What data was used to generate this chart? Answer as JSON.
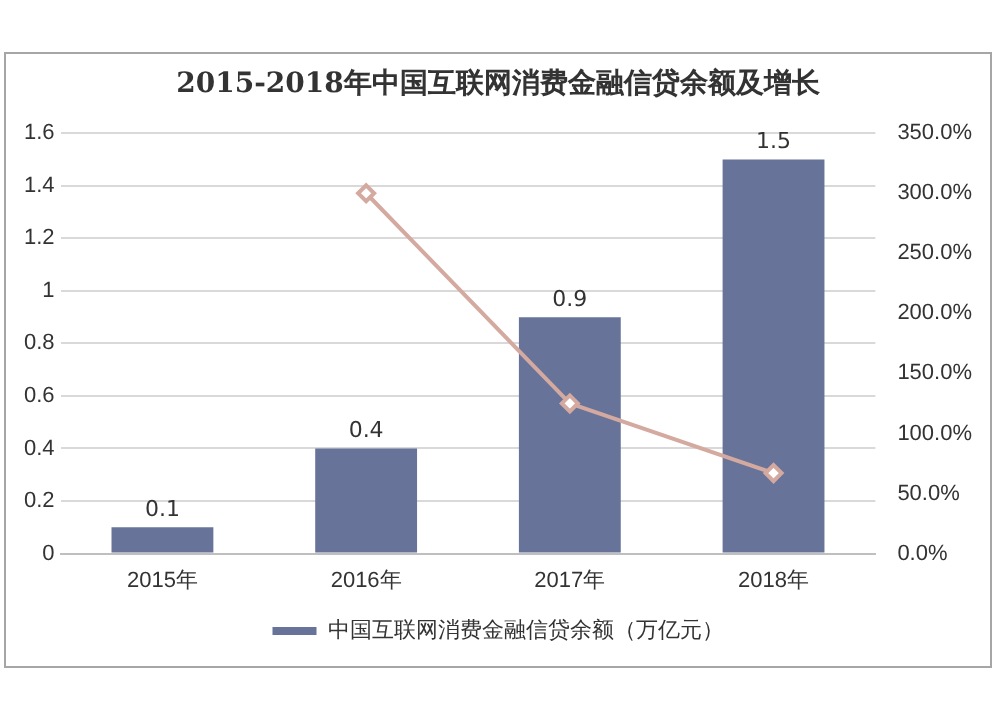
{
  "chart_data": {
    "type": "bar",
    "title": "2015-2018年中国互联网消费金融信贷余额及增长",
    "categories": [
      "2015年",
      "2016年",
      "2017年",
      "2018年"
    ],
    "series": [
      {
        "name": "中国互联网消费金融信贷余额（万亿元）",
        "color": "#677399",
        "values": [
          0.1,
          0.4,
          0.9,
          1.5
        ],
        "value_labels": [
          "0.1",
          "0.4",
          "0.9",
          "1.5"
        ]
      },
      {
        "type": "line",
        "axis": "y2",
        "color": "#d4a9a0",
        "values": [
          null,
          300,
          125,
          67
        ],
        "marker": "diamond"
      }
    ],
    "ylim": [
      0,
      1.6
    ],
    "yticks": [
      0,
      0.2,
      0.4,
      0.6,
      0.8,
      1,
      1.2,
      1.4,
      1.6
    ],
    "y2lim": [
      0,
      350
    ],
    "y2ticks": [
      {
        "value": 0,
        "label": "0.0%"
      },
      {
        "value": 50,
        "label": "50.0%"
      },
      {
        "value": 100,
        "label": "100.0%"
      },
      {
        "value": 150,
        "label": "150.0%"
      },
      {
        "value": 200,
        "label": "200.0%"
      },
      {
        "value": 250,
        "label": "250.0%"
      },
      {
        "value": 300,
        "label": "300.0%"
      },
      {
        "value": 350,
        "label": "350.0%"
      }
    ],
    "grid": "y",
    "legend": "bottom"
  }
}
